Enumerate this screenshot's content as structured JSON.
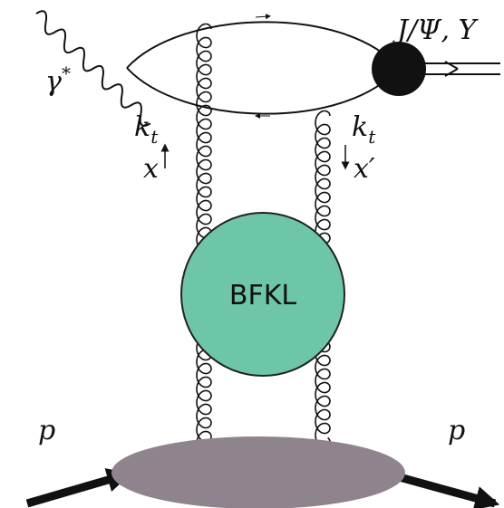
{
  "labels": {
    "meson": "J/Ψ, Υ",
    "photon": {
      "text": "γ",
      "sup": "*"
    },
    "left_momentum": {
      "text": "k",
      "sub": "t"
    },
    "left_fraction": "x",
    "right_momentum": {
      "text": "k",
      "sub": "t"
    },
    "right_fraction": "x′",
    "ladder": "BFKL",
    "proton_in": "p",
    "proton_out": "p"
  }
}
